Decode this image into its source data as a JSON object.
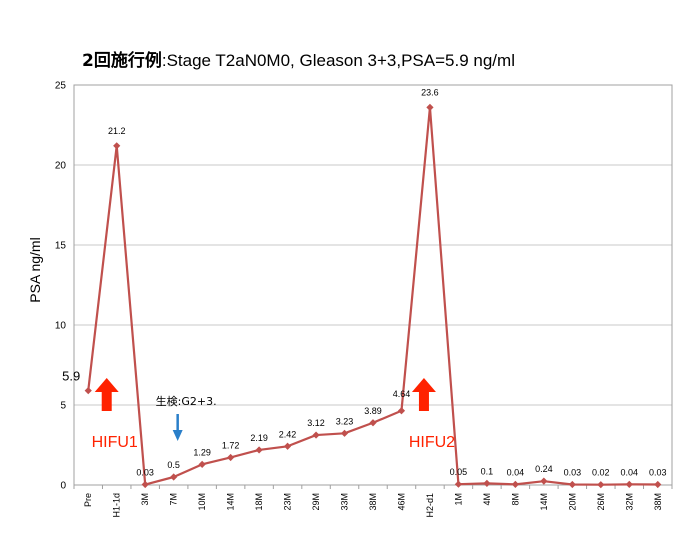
{
  "chart_data": {
    "type": "line",
    "title": "2回施行例",
    "subtitle": ":Stage T2aN0M0, Gleason 3+3,PSA=5.9 ng/ml",
    "ylabel": "PSA ng/ml",
    "xlabel": "",
    "ylim": [
      0,
      25
    ],
    "yticks": [
      "0",
      "5",
      "10",
      "15",
      "20",
      "25"
    ],
    "grid": true,
    "line_color": "#c0504d",
    "categories": [
      "Pre",
      "H1-1d",
      "3M",
      "7M",
      "10M",
      "14M",
      "18M",
      "23M",
      "29M",
      "33M",
      "38M",
      "46M",
      "H2-d1",
      "1M",
      "4M",
      "8M",
      "14M",
      "20M",
      "26M",
      "32M",
      "38M"
    ],
    "values": [
      5.9,
      21.2,
      0.03,
      0.5,
      1.29,
      1.72,
      2.19,
      2.42,
      3.12,
      3.23,
      3.89,
      4.64,
      23.6,
      0.05,
      0.1,
      0.04,
      0.24,
      0.03,
      0.02,
      0.04,
      0.03
    ],
    "data_labels": [
      "5.9",
      "21.2",
      "0.03",
      "0.5",
      "1.29",
      "1.72",
      "2.19",
      "2.42",
      "3.12",
      "3.23",
      "3.89",
      "4.64",
      "23.6",
      "0.05",
      "0.1",
      "0.04",
      "0.24",
      "0.03",
      "0.02",
      "0.04",
      "0.03"
    ],
    "annotations": [
      {
        "text": "HIFU1",
        "at_index": 1,
        "color": "#ff2200",
        "arrow": "up"
      },
      {
        "text": "HIFU2",
        "at_index": 12,
        "color": "#ff2200",
        "arrow": "up"
      },
      {
        "text": "生検:G2+3.",
        "at_index": 3,
        "color": "#2a7fc9",
        "arrow": "down"
      }
    ]
  }
}
